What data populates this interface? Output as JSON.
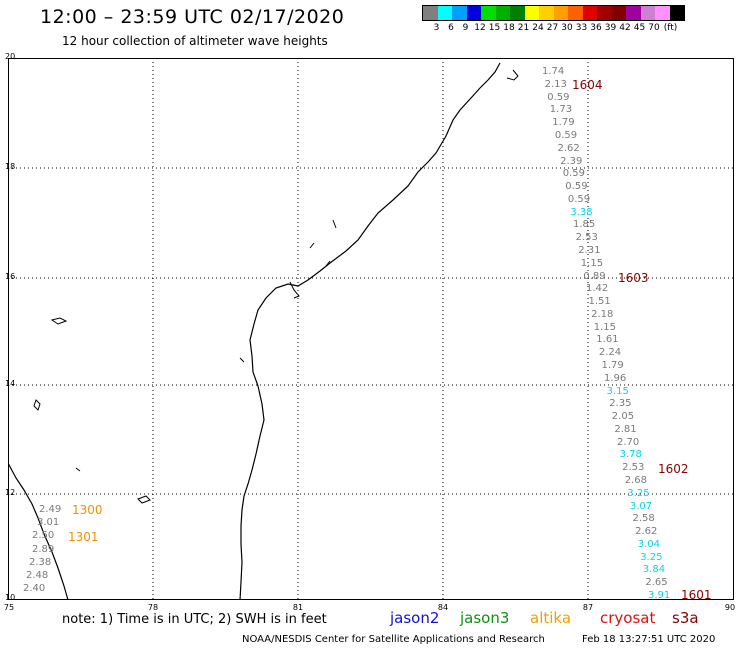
{
  "header": {
    "title": "12:00 – 23:59 UTC 02/17/2020",
    "subtitle": "12 hour collection of altimeter wave heights"
  },
  "color_scale": {
    "colors": [
      "#7f7f7f",
      "#00ffff",
      "#00a0ff",
      "#0000e0",
      "#00e000",
      "#00b000",
      "#008000",
      "#ffff00",
      "#ffd000",
      "#ffa000",
      "#ff6000",
      "#e00000",
      "#a00000",
      "#800000",
      "#a000a0",
      "#d080d0",
      "#ff90ff",
      "#000000"
    ],
    "labels": [
      "3",
      "6",
      "9",
      "12",
      "15",
      "18",
      "21",
      "24",
      "27",
      "30",
      "33",
      "36",
      "39",
      "42",
      "45",
      "70",
      "(ft)"
    ]
  },
  "map": {
    "lat_labels": [
      "20",
      "18",
      "16",
      "14",
      "12",
      "10"
    ],
    "lon_labels": [
      "75",
      "78",
      "81",
      "84",
      "87",
      "90"
    ]
  },
  "tracks": {
    "east": [
      {
        "v": "1.74",
        "c": "gray"
      },
      {
        "v": "2.13",
        "c": "gray"
      },
      {
        "v": "0.59",
        "c": "gray"
      },
      {
        "v": "1.73",
        "c": "gray"
      },
      {
        "v": "1.79",
        "c": "gray"
      },
      {
        "v": "0.59",
        "c": "gray"
      },
      {
        "v": "2.62",
        "c": "gray"
      },
      {
        "v": "2.39",
        "c": "gray"
      },
      {
        "v": "0.59",
        "c": "gray"
      },
      {
        "v": "0.59",
        "c": "gray"
      },
      {
        "v": "0.59",
        "c": "gray"
      },
      {
        "v": "3.38",
        "c": "cyan"
      },
      {
        "v": "1.85",
        "c": "gray"
      },
      {
        "v": "2.53",
        "c": "gray"
      },
      {
        "v": "2.31",
        "c": "gray"
      },
      {
        "v": "1.15",
        "c": "gray"
      },
      {
        "v": "0.89",
        "c": "gray"
      },
      {
        "v": "1.42",
        "c": "gray"
      },
      {
        "v": "1.51",
        "c": "gray"
      },
      {
        "v": "2.18",
        "c": "gray"
      },
      {
        "v": "1.15",
        "c": "gray"
      },
      {
        "v": "1.61",
        "c": "gray"
      },
      {
        "v": "2.24",
        "c": "gray"
      },
      {
        "v": "1.79",
        "c": "gray"
      },
      {
        "v": "1.96",
        "c": "gray"
      },
      {
        "v": "3.15",
        "c": "cyan"
      },
      {
        "v": "2.35",
        "c": "gray"
      },
      {
        "v": "2.05",
        "c": "gray"
      },
      {
        "v": "2.81",
        "c": "gray"
      },
      {
        "v": "2.70",
        "c": "gray"
      },
      {
        "v": "3.78",
        "c": "cyan"
      },
      {
        "v": "2.53",
        "c": "gray"
      },
      {
        "v": "2.68",
        "c": "gray"
      },
      {
        "v": "3.25",
        "c": "cyan"
      },
      {
        "v": "3.07",
        "c": "cyan"
      },
      {
        "v": "2.58",
        "c": "gray"
      },
      {
        "v": "2.62",
        "c": "gray"
      },
      {
        "v": "3.04",
        "c": "cyan"
      },
      {
        "v": "3.25",
        "c": "cyan"
      },
      {
        "v": "3.84",
        "c": "cyan"
      },
      {
        "v": "2.65",
        "c": "gray"
      },
      {
        "v": "3.91",
        "c": "cyan"
      }
    ],
    "east_times": [
      "1604",
      "1603",
      "1602",
      "1601"
    ],
    "west": [
      "2.49",
      "3.01",
      "2.50",
      "2.89",
      "2.38",
      "2.48",
      "2.40"
    ],
    "west_times": [
      "1300",
      "1301"
    ]
  },
  "footer": {
    "note": "note: 1) Time is in UTC; 2) SWH is in feet",
    "satellites": [
      {
        "name": "jason2",
        "color": "#1010e0"
      },
      {
        "name": "jason3",
        "color": "#109010"
      },
      {
        "name": "altika",
        "color": "#f0a000"
      },
      {
        "name": "cryosat",
        "color": "#e01010"
      },
      {
        "name": "s3a",
        "color": "#8b0000"
      }
    ],
    "credit": "NOAA/NESDIS Center for Satellite Applications and Research",
    "timestamp": "Feb 18 13:27:51 UTC 2020"
  }
}
